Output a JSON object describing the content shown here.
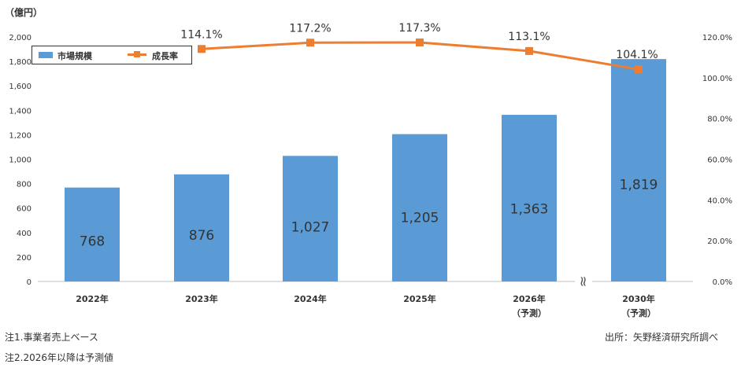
{
  "chart_data": {
    "type": "bar",
    "unit_label": "（億円）",
    "categories": [
      "2022年",
      "2023年",
      "2024年",
      "2025年",
      "2026年",
      "2030年"
    ],
    "category_sublabels": [
      "",
      "",
      "",
      "",
      "（予測）",
      "（予測）"
    ],
    "series": [
      {
        "name": "市場規模",
        "type": "bar",
        "axis": "left",
        "color": "#5B9BD5",
        "values": [
          768,
          876,
          1027,
          1205,
          1363,
          1819
        ],
        "labels": [
          "768",
          "876",
          "1,027",
          "1,205",
          "1,363",
          "1,819"
        ]
      },
      {
        "name": "成長率",
        "type": "line",
        "axis": "right",
        "color": "#ED7D31",
        "values": [
          null,
          114.1,
          117.2,
          117.3,
          113.1,
          104.1
        ],
        "labels": [
          "",
          "114.1%",
          "117.2%",
          "117.3%",
          "113.1%",
          "104.1%"
        ]
      }
    ],
    "y_left": {
      "min": 0,
      "max": 2000,
      "ticks": [
        "0",
        "200",
        "400",
        "600",
        "800",
        "1,000",
        "1,200",
        "1,400",
        "1,600",
        "1,800",
        "2,000"
      ]
    },
    "y_right": {
      "min": 0,
      "max": 120,
      "ticks": [
        "0.0%",
        "20.0%",
        "40.0%",
        "60.0%",
        "80.0%",
        "100.0%",
        "120.0%"
      ]
    },
    "axis_break_symbol": "≈",
    "grid": false,
    "legend_position": "top-left"
  },
  "notes": {
    "note1": "注1.事業者売上ベース",
    "note2": "注2.2026年以降は予測値",
    "source": "出所：矢野経済研究所調べ"
  }
}
